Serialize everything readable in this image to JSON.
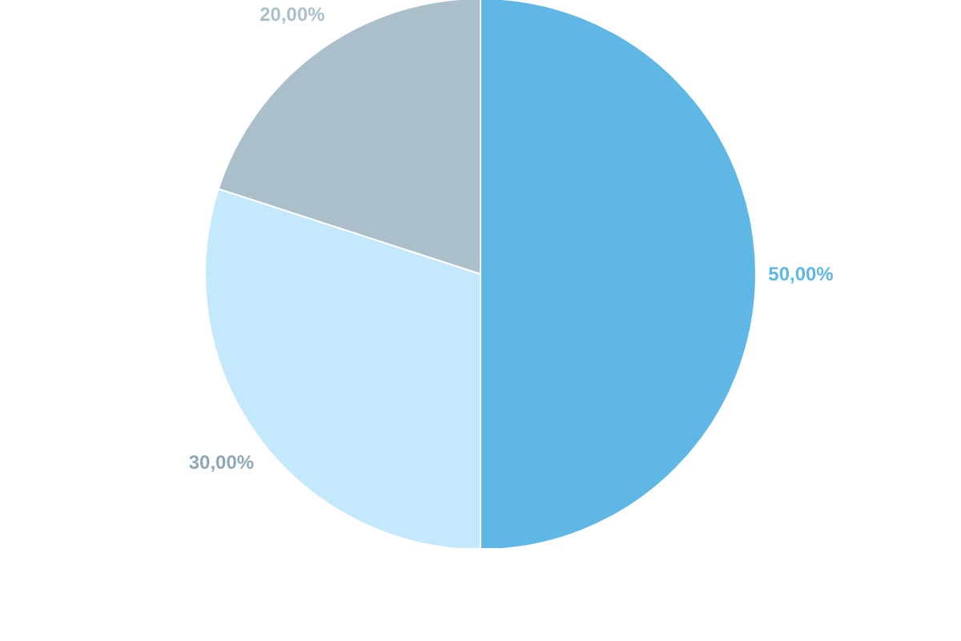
{
  "chart_data": {
    "type": "pie",
    "categories": [
      null,
      null,
      null
    ],
    "values": [
      50,
      30,
      20
    ],
    "colors": [
      "#5fb7e6",
      "#c4e9fd",
      "#abbfcb"
    ],
    "value_labels": [
      "50,00%",
      "30,00%",
      "20,00%"
    ]
  }
}
